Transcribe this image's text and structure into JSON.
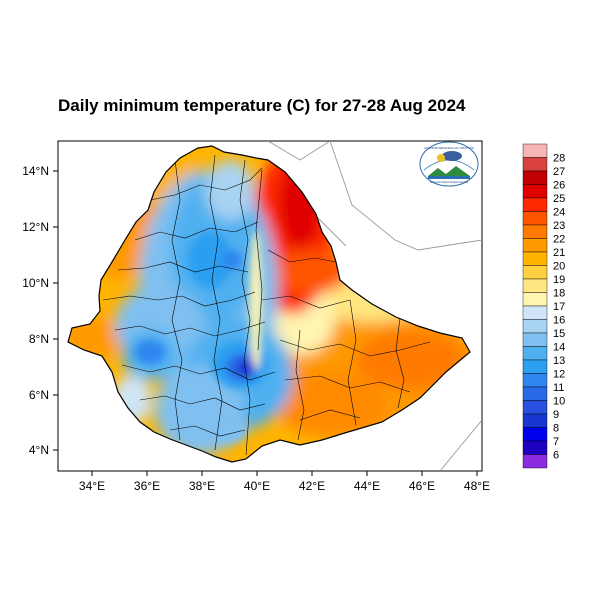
{
  "title": "Daily minimum temperature (C) for 27-28 Aug 2024",
  "axes": {
    "x_ticks": [
      "34°E",
      "36°E",
      "38°E",
      "40°E",
      "42°E",
      "44°E",
      "46°E",
      "48°E"
    ],
    "y_ticks": [
      "14°N",
      "12°N",
      "10°N",
      "8°N",
      "6°N",
      "4°N"
    ]
  },
  "colorbar": {
    "labels": [
      "28",
      "27",
      "26",
      "25",
      "24",
      "23",
      "22",
      "21",
      "20",
      "19",
      "18",
      "17",
      "16",
      "15",
      "14",
      "13",
      "12",
      "11",
      "10",
      "9",
      "8",
      "7",
      "6"
    ],
    "colors": [
      "#f7b4b4",
      "#d94040",
      "#c00000",
      "#e00000",
      "#ff2a00",
      "#ff5500",
      "#ff7a00",
      "#ff9900",
      "#ffb400",
      "#ffd040",
      "#ffe680",
      "#fff4b0",
      "#cfe4f7",
      "#a9d3f2",
      "#7fc0f0",
      "#4fb0f0",
      "#2c9ff0",
      "#2f86f0",
      "#2a6ae8",
      "#2850e0",
      "#1a36d0",
      "#0000f0",
      "#2000c0",
      "#8a2be2"
    ]
  },
  "logo": {
    "text_top": "ETHIOPIAN METEOROLOGY INSTITUTE",
    "text_bottom": "Ethiopian Meteorological Institute"
  }
}
